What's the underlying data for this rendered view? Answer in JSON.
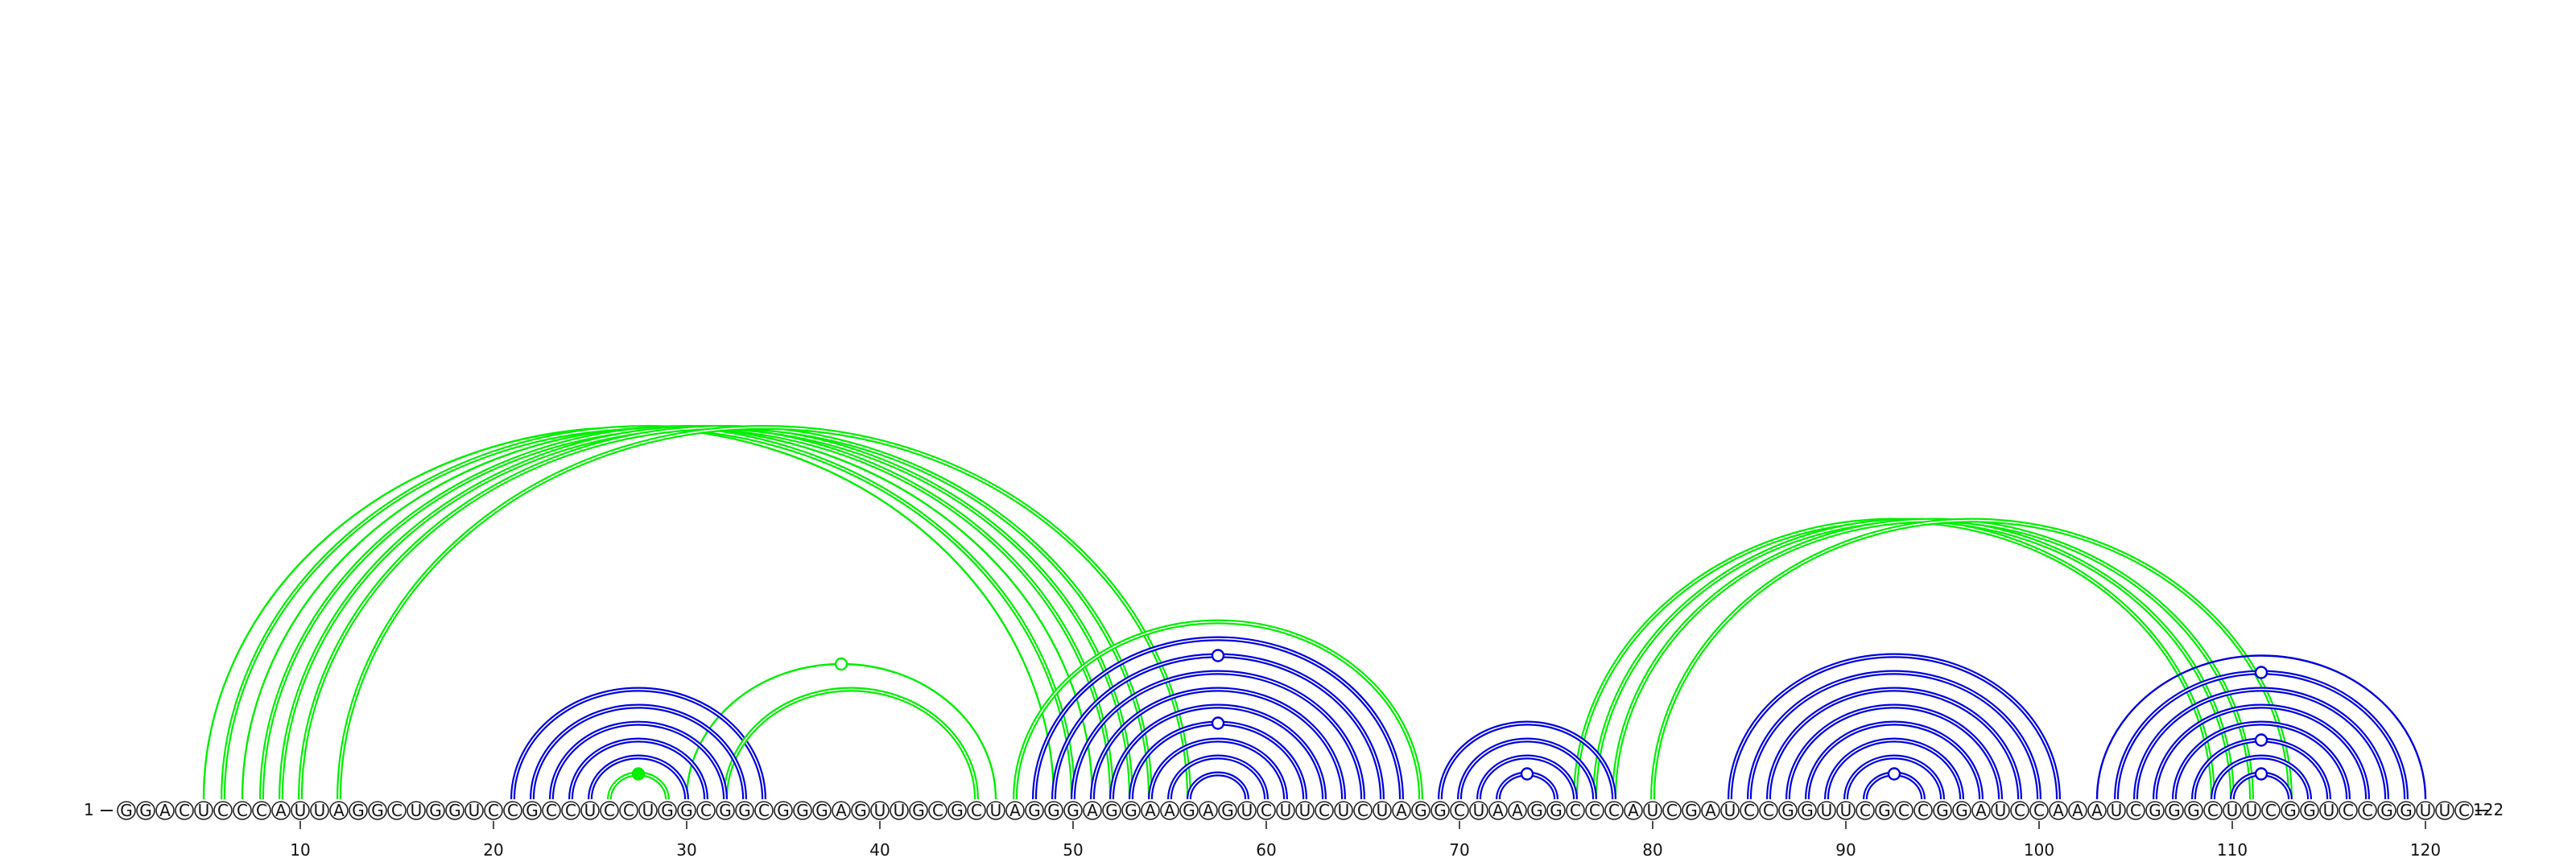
{
  "sequence": "GGACUCCCAUUAGGCUGGUCCGCCUCCUGGCGGCGGGAGUUGCGCUAGGGAGGAAGAGUCUUCUCUAGGCUAAGGCCCAUCGAUCCGGUUCGCCGGAUCCAAAUCGGGCUUCGGUCCGGUUC",
  "start_label": "1",
  "end_label": "122",
  "ticks": [
    10,
    20,
    30,
    40,
    50,
    60,
    70,
    80,
    90,
    100,
    110,
    120
  ],
  "colors": {
    "green": "#00ee00",
    "blue": "#0000dd",
    "nucleotide_stroke": "#222222",
    "nucleotide_fill": "#ffffff"
  },
  "arcs": [
    {
      "i": 5,
      "j": 49,
      "color": "green",
      "style": "single"
    },
    {
      "i": 6,
      "j": 50,
      "color": "green",
      "style": "double"
    },
    {
      "i": 7,
      "j": 51,
      "color": "green",
      "style": "single"
    },
    {
      "i": 8,
      "j": 52,
      "color": "green",
      "style": "double"
    },
    {
      "i": 9,
      "j": 53,
      "color": "green",
      "style": "double"
    },
    {
      "i": 10,
      "j": 54,
      "color": "green",
      "style": "double"
    },
    {
      "i": 12,
      "j": 56,
      "color": "green",
      "style": "double"
    },
    {
      "i": 21,
      "j": 34,
      "color": "blue",
      "style": "double"
    },
    {
      "i": 22,
      "j": 33,
      "color": "blue",
      "style": "double"
    },
    {
      "i": 23,
      "j": 32,
      "color": "blue",
      "style": "double"
    },
    {
      "i": 24,
      "j": 31,
      "color": "blue",
      "style": "double"
    },
    {
      "i": 25,
      "j": 30,
      "color": "blue",
      "style": "double"
    },
    {
      "i": 26,
      "j": 29,
      "color": "green",
      "style": "double",
      "marker": "filled"
    },
    {
      "i": 30,
      "j": 46,
      "color": "green",
      "style": "single",
      "marker": "open"
    },
    {
      "i": 32,
      "j": 45,
      "color": "green",
      "style": "double"
    },
    {
      "i": 47,
      "j": 68,
      "color": "green",
      "style": "double"
    },
    {
      "i": 48,
      "j": 67,
      "color": "blue",
      "style": "double"
    },
    {
      "i": 49,
      "j": 66,
      "color": "blue",
      "style": "double",
      "marker": "open"
    },
    {
      "i": 50,
      "j": 65,
      "color": "blue",
      "style": "double"
    },
    {
      "i": 51,
      "j": 64,
      "color": "blue",
      "style": "double"
    },
    {
      "i": 52,
      "j": 63,
      "color": "blue",
      "style": "double"
    },
    {
      "i": 53,
      "j": 62,
      "color": "blue",
      "style": "double",
      "marker": "open"
    },
    {
      "i": 54,
      "j": 61,
      "color": "blue",
      "style": "double"
    },
    {
      "i": 55,
      "j": 60,
      "color": "blue",
      "style": "double"
    },
    {
      "i": 56,
      "j": 59,
      "color": "blue",
      "style": "double"
    },
    {
      "i": 69,
      "j": 78,
      "color": "blue",
      "style": "double"
    },
    {
      "i": 70,
      "j": 77,
      "color": "blue",
      "style": "double"
    },
    {
      "i": 71,
      "j": 76,
      "color": "blue",
      "style": "double"
    },
    {
      "i": 72,
      "j": 75,
      "color": "blue",
      "style": "double",
      "marker": "open"
    },
    {
      "i": 76,
      "j": 109,
      "color": "green",
      "style": "double"
    },
    {
      "i": 77,
      "j": 110,
      "color": "green",
      "style": "double"
    },
    {
      "i": 78,
      "j": 111,
      "color": "green",
      "style": "double"
    },
    {
      "i": 80,
      "j": 113,
      "color": "green",
      "style": "double"
    },
    {
      "i": 84,
      "j": 101,
      "color": "blue",
      "style": "double"
    },
    {
      "i": 85,
      "j": 100,
      "color": "blue",
      "style": "double"
    },
    {
      "i": 86,
      "j": 99,
      "color": "blue",
      "style": "double"
    },
    {
      "i": 87,
      "j": 98,
      "color": "blue",
      "style": "double"
    },
    {
      "i": 88,
      "j": 97,
      "color": "blue",
      "style": "double"
    },
    {
      "i": 89,
      "j": 96,
      "color": "blue",
      "style": "double"
    },
    {
      "i": 90,
      "j": 95,
      "color": "blue",
      "style": "double"
    },
    {
      "i": 91,
      "j": 94,
      "color": "blue",
      "style": "double",
      "marker": "open"
    },
    {
      "i": 103,
      "j": 120,
      "color": "blue",
      "style": "single"
    },
    {
      "i": 104,
      "j": 119,
      "color": "blue",
      "style": "double",
      "marker": "open"
    },
    {
      "i": 105,
      "j": 118,
      "color": "blue",
      "style": "double"
    },
    {
      "i": 106,
      "j": 117,
      "color": "blue",
      "style": "double"
    },
    {
      "i": 107,
      "j": 116,
      "color": "blue",
      "style": "double"
    },
    {
      "i": 108,
      "j": 115,
      "color": "blue",
      "style": "double",
      "marker": "open"
    },
    {
      "i": 109,
      "j": 114,
      "color": "blue",
      "style": "double"
    },
    {
      "i": 110,
      "j": 113,
      "color": "blue",
      "style": "double",
      "marker": "open"
    }
  ]
}
